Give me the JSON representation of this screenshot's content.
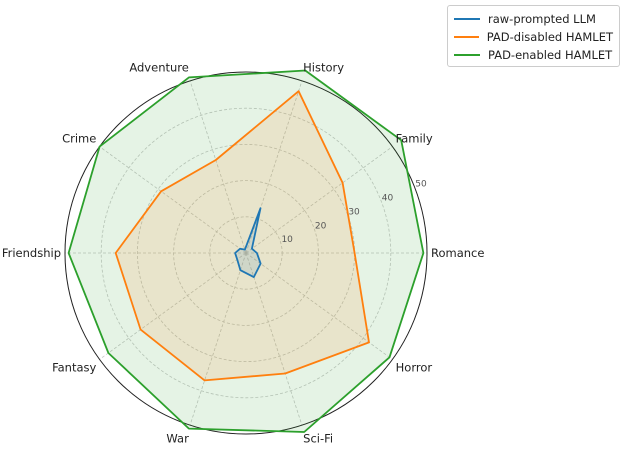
{
  "chart_data": {
    "type": "radar",
    "categories": [
      "Romance",
      "Family",
      "History",
      "Adventure",
      "Crime",
      "Friendship",
      "Fantasy",
      "War",
      "Sci-Fi",
      "Horror"
    ],
    "rlim": [
      0,
      50
    ],
    "rticks": [
      10,
      20,
      30,
      40,
      50
    ],
    "rtick_labels": [
      "10",
      "20",
      "30",
      "40",
      "50"
    ],
    "grid": true,
    "legend_position": "top-right",
    "series": [
      {
        "name": "raw-prompted LLM",
        "color": "#1f77b4",
        "values": [
          3,
          2,
          13,
          1,
          2,
          3,
          3,
          5,
          7,
          5
        ]
      },
      {
        "name": "PAD-disabled HAMLET",
        "color": "#ff7f0e",
        "values": [
          30,
          33,
          47,
          27,
          29,
          36,
          36,
          37,
          35,
          42
        ]
      },
      {
        "name": "PAD-enabled HAMLET",
        "color": "#2ca02c",
        "values": [
          49,
          53,
          53,
          51,
          50,
          49,
          47,
          51,
          52,
          49
        ]
      }
    ]
  }
}
